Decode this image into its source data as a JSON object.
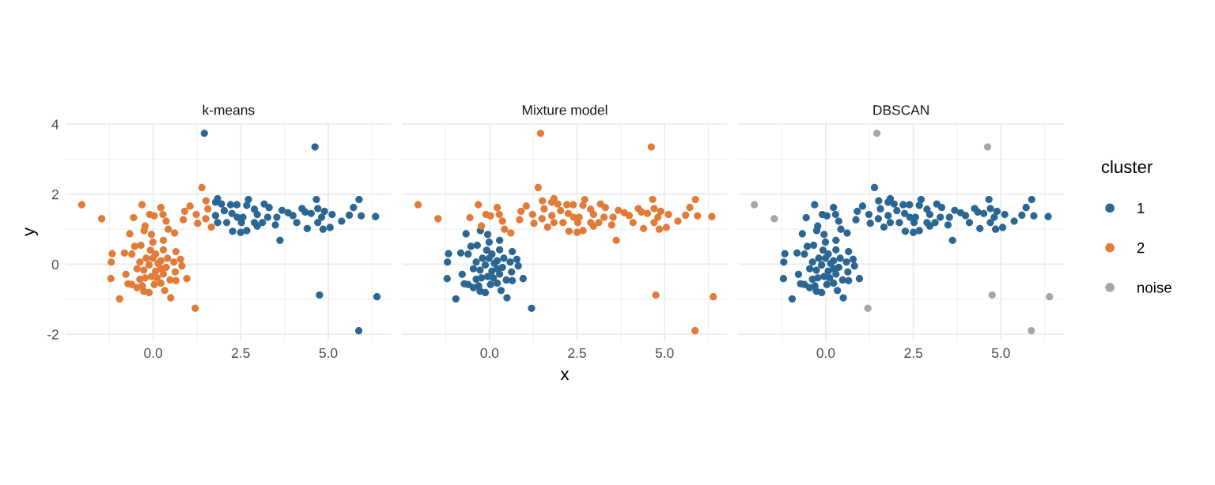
{
  "chart_data": [
    {
      "type": "scatter",
      "title": "k-means",
      "ylabel": "y",
      "marker": "circle",
      "grid": true,
      "legend": "right",
      "xlim": [
        -2.5,
        6.8
      ],
      "ylim": [
        -2.2,
        4.05
      ],
      "xticks": [
        {
          "value": -1.25,
          "label": null
        },
        {
          "value": 0,
          "label": "0.0"
        },
        {
          "value": 1.25,
          "label": null
        },
        {
          "value": 2.5,
          "label": "2.5"
        },
        {
          "value": 3.75,
          "label": null
        },
        {
          "value": 5,
          "label": "5.0"
        },
        {
          "value": 6.25,
          "label": null
        }
      ],
      "yticks": [
        -2,
        {
          "value": -1,
          "label": null
        },
        0,
        {
          "value": 1,
          "label": null
        },
        2,
        {
          "value": 3,
          "label": null
        },
        4
      ],
      "series": [
        {
          "name": "1",
          "color": "#2c6693",
          "x": [
            1.46,
            4.62,
            4.75,
            6.39,
            5.87,
            3.62,
            1.84,
            1.78,
            1.95,
            1.78,
            1.84,
            2.03,
            2.21,
            2.39,
            2.25,
            2.1,
            2.27,
            2.5,
            2.67,
            2.52,
            2.56,
            2.4,
            2.72,
            2.67,
            2.89,
            2.97,
            2.89,
            2.97,
            3.17,
            3.31,
            3.12,
            3.27,
            3.49,
            3.53,
            3.68,
            3.85,
            3.99,
            4.1,
            4.25,
            4.34,
            4.51,
            4.4,
            4.66,
            4.7,
            4.89,
            4.81,
            4.7,
            4.85,
            5.05,
            5.11,
            5.38,
            5.6,
            5.72,
            5.88,
            5.94,
            6.35
          ],
          "values": [
            3.74,
            3.35,
            -0.88,
            -0.93,
            -1.9,
            0.68,
            1.87,
            1.77,
            1.72,
            1.39,
            1.19,
            1.53,
            1.7,
            1.7,
            1.45,
            1.19,
            0.94,
            0.91,
            0.96,
            1.19,
            1.34,
            1.34,
            1.85,
            1.68,
            1.57,
            1.42,
            1.19,
            1.09,
            1.72,
            1.62,
            1.19,
            1.34,
            1.12,
            1.34,
            1.54,
            1.47,
            1.39,
            1.19,
            1.59,
            1.49,
            1.45,
            1.02,
            1.85,
            1.59,
            1.51,
            1.34,
            1.19,
            1.0,
            1.05,
            1.42,
            1.23,
            1.4,
            1.62,
            1.85,
            1.38,
            1.36
          ]
        },
        {
          "name": "2",
          "color": "#e07b39",
          "x": [
            -2.04,
            -1.47,
            -0.32,
            -0.56,
            -0.1,
            0.03,
            0.22,
            0.28,
            0.37,
            0.43,
            0.61,
            -0.23,
            -0.26,
            -0.67,
            -0.05,
            0.29,
            -0.01,
            -0.53,
            -0.35,
            -1.17,
            -0.82,
            -0.61,
            -1.2,
            0.65,
            0.29,
            -1.21,
            -0.78,
            -0.72,
            -0.61,
            -0.46,
            -0.27,
            -0.12,
            0.03,
            0.22,
            0.33,
            0.5,
            -0.96,
            0.48,
            0.65,
            0.96,
            0.63,
            0.82,
            0.78,
            0.59,
            0.41,
            0.22,
            0.07,
            -0.08,
            -0.2,
            -0.38,
            -0.46,
            -0.27,
            -0.12,
            0.07,
            0.22,
            0.37,
            -0.05,
            -0.23,
            -0.38,
            0.11,
            0.29,
            -0.31,
            -0.01,
            0.14,
            1.39,
            1.51,
            1.56,
            1.05,
            0.9,
            0.86,
            1.23,
            1.27,
            1.5,
            1.66,
            1.2
          ],
          "values": [
            1.7,
            1.3,
            1.7,
            1.33,
            1.42,
            1.38,
            1.62,
            1.42,
            1.23,
            1.0,
            0.89,
            1.09,
            0.96,
            0.87,
            0.85,
            0.68,
            0.63,
            0.51,
            0.54,
            0.3,
            0.32,
            0.29,
            0.06,
            0.36,
            0.41,
            -0.41,
            -0.29,
            -0.56,
            -0.58,
            -0.67,
            -0.77,
            -0.81,
            -0.58,
            -0.54,
            -0.75,
            -0.96,
            -0.99,
            -0.45,
            -0.47,
            -0.41,
            -0.22,
            -0.05,
            0.14,
            0.06,
            0.17,
            0.1,
            0.29,
            0.4,
            0.17,
            0.06,
            -0.13,
            -0.17,
            -0.02,
            -0.2,
            -0.13,
            -0.09,
            -0.35,
            -0.39,
            -0.43,
            -0.39,
            -0.28,
            -0.62,
            0.17,
            0.02,
            2.19,
            1.81,
            1.58,
            1.66,
            1.51,
            1.27,
            1.42,
            1.17,
            1.3,
            1.06,
            -1.26
          ]
        }
      ]
    },
    {
      "type": "scatter",
      "title": "Mixture model",
      "xlabel": "x",
      "marker": "circle",
      "grid": true,
      "legend": "right",
      "tick_labels": "x",
      "xlim": [
        -2.5,
        6.8
      ],
      "ylim": [
        -2.2,
        4.05
      ],
      "xticks": [
        {
          "value": -1.25,
          "label": null
        },
        {
          "value": 0,
          "label": "0.0"
        },
        {
          "value": 1.25,
          "label": null
        },
        {
          "value": 2.5,
          "label": "2.5"
        },
        {
          "value": 3.75,
          "label": null
        },
        {
          "value": 5,
          "label": "5.0"
        },
        {
          "value": 6.25,
          "label": null
        }
      ],
      "yticks": [
        -2,
        {
          "value": -1,
          "label": null
        },
        0,
        {
          "value": 1,
          "label": null
        },
        2,
        {
          "value": 3,
          "label": null
        },
        4
      ],
      "series": [
        {
          "name": "1",
          "color": "#2c6693",
          "x": [
            -0.26,
            -0.67,
            -0.05,
            0.29,
            -0.01,
            -0.53,
            -0.35,
            -1.17,
            -0.82,
            -0.61,
            -1.2,
            0.65,
            0.29,
            -1.21,
            -0.78,
            -0.72,
            -0.61,
            -0.46,
            -0.27,
            -0.12,
            0.03,
            0.22,
            0.33,
            0.5,
            -0.96,
            0.48,
            0.65,
            0.96,
            0.63,
            0.82,
            0.78,
            0.59,
            0.41,
            0.22,
            0.07,
            -0.08,
            -0.2,
            -0.38,
            -0.46,
            -0.27,
            -0.12,
            0.07,
            0.22,
            0.37,
            -0.05,
            -0.23,
            -0.38,
            0.11,
            0.29,
            -0.31,
            -0.01,
            0.14,
            1.2
          ],
          "values": [
            0.96,
            0.87,
            0.85,
            0.68,
            0.63,
            0.51,
            0.54,
            0.3,
            0.32,
            0.29,
            0.06,
            0.36,
            0.41,
            -0.41,
            -0.29,
            -0.56,
            -0.58,
            -0.67,
            -0.77,
            -0.81,
            -0.58,
            -0.54,
            -0.75,
            -0.96,
            -0.99,
            -0.45,
            -0.47,
            -0.41,
            -0.22,
            -0.05,
            0.14,
            0.06,
            0.17,
            0.1,
            0.29,
            0.4,
            0.17,
            0.06,
            -0.13,
            -0.17,
            -0.02,
            -0.2,
            -0.13,
            -0.09,
            -0.35,
            -0.39,
            -0.43,
            -0.39,
            -0.28,
            -0.62,
            0.17,
            0.02,
            -1.26
          ]
        },
        {
          "name": "2",
          "color": "#e07b39",
          "x": [
            -2.04,
            -1.47,
            -0.32,
            -0.56,
            -0.1,
            0.03,
            0.22,
            0.28,
            0.37,
            0.43,
            0.61,
            -0.23,
            1.39,
            1.51,
            1.56,
            1.05,
            0.9,
            0.86,
            1.23,
            1.27,
            1.5,
            1.66,
            1.46,
            4.62,
            4.75,
            6.39,
            5.87,
            3.62,
            1.84,
            1.78,
            1.95,
            1.78,
            1.84,
            2.03,
            2.21,
            2.39,
            2.25,
            2.1,
            2.27,
            2.5,
            2.67,
            2.52,
            2.56,
            2.4,
            2.72,
            2.67,
            2.89,
            2.97,
            2.89,
            2.97,
            3.17,
            3.31,
            3.12,
            3.27,
            3.49,
            3.53,
            3.68,
            3.85,
            3.99,
            4.1,
            4.25,
            4.34,
            4.51,
            4.4,
            4.66,
            4.7,
            4.89,
            4.81,
            4.7,
            4.85,
            5.05,
            5.11,
            5.38,
            5.6,
            5.72,
            5.88,
            5.94,
            6.35
          ],
          "values": [
            1.7,
            1.3,
            1.7,
            1.33,
            1.42,
            1.38,
            1.62,
            1.42,
            1.23,
            1.0,
            0.89,
            1.09,
            2.19,
            1.81,
            1.58,
            1.66,
            1.51,
            1.27,
            1.42,
            1.17,
            1.3,
            1.06,
            3.74,
            3.35,
            -0.88,
            -0.93,
            -1.9,
            0.68,
            1.87,
            1.77,
            1.72,
            1.39,
            1.19,
            1.53,
            1.7,
            1.7,
            1.45,
            1.19,
            0.94,
            0.91,
            0.96,
            1.19,
            1.34,
            1.34,
            1.85,
            1.68,
            1.57,
            1.42,
            1.19,
            1.09,
            1.72,
            1.62,
            1.19,
            1.34,
            1.12,
            1.34,
            1.54,
            1.47,
            1.39,
            1.19,
            1.59,
            1.49,
            1.45,
            1.02,
            1.85,
            1.59,
            1.51,
            1.34,
            1.19,
            1.0,
            1.05,
            1.42,
            1.23,
            1.4,
            1.62,
            1.85,
            1.38,
            1.36
          ]
        }
      ]
    },
    {
      "type": "scatter",
      "title": "DBSCAN",
      "marker": "circle",
      "grid": true,
      "legend": "right",
      "legend_title": "cluster",
      "tick_labels": "x",
      "xlim": [
        -2.5,
        6.8
      ],
      "ylim": [
        -2.2,
        4.05
      ],
      "xticks": [
        {
          "value": -1.25,
          "label": null
        },
        {
          "value": 0,
          "label": "0.0"
        },
        {
          "value": 1.25,
          "label": null
        },
        {
          "value": 2.5,
          "label": "2.5"
        },
        {
          "value": 3.75,
          "label": null
        },
        {
          "value": 5,
          "label": "5.0"
        },
        {
          "value": 6.25,
          "label": null
        }
      ],
      "yticks": [
        -2,
        {
          "value": -1,
          "label": null
        },
        0,
        {
          "value": 1,
          "label": null
        },
        2,
        {
          "value": 3,
          "label": null
        },
        4
      ],
      "series": [
        {
          "name": "1",
          "color": "#2c6693",
          "x": [
            -0.32,
            -0.56,
            -0.1,
            0.03,
            0.22,
            0.28,
            0.37,
            0.43,
            0.61,
            -0.23,
            -0.26,
            -0.67,
            -0.05,
            0.29,
            -0.01,
            -0.53,
            -0.35,
            -1.17,
            -0.82,
            -0.61,
            -1.2,
            0.65,
            0.29,
            -1.21,
            -0.78,
            -0.72,
            -0.61,
            -0.46,
            -0.27,
            -0.12,
            0.03,
            0.22,
            0.33,
            0.5,
            -0.96,
            0.48,
            0.65,
            0.96,
            0.63,
            0.82,
            0.78,
            0.59,
            0.41,
            0.22,
            0.07,
            -0.08,
            -0.2,
            -0.38,
            -0.46,
            -0.27,
            -0.12,
            0.07,
            0.22,
            0.37,
            -0.05,
            -0.23,
            -0.38,
            0.11,
            0.29,
            -0.31,
            -0.01,
            0.14,
            1.39,
            1.51,
            1.56,
            1.05,
            0.9,
            0.86,
            1.23,
            1.27,
            1.5,
            1.66,
            3.62,
            1.84,
            1.78,
            1.95,
            1.78,
            1.84,
            2.03,
            2.21,
            2.39,
            2.25,
            2.1,
            2.27,
            2.5,
            2.67,
            2.52,
            2.56,
            2.4,
            2.72,
            2.67,
            2.89,
            2.97,
            2.89,
            2.97,
            3.17,
            3.31,
            3.12,
            3.27,
            3.49,
            3.53,
            3.68,
            3.85,
            3.99,
            4.1,
            4.25,
            4.34,
            4.51,
            4.4,
            4.66,
            4.7,
            4.89,
            4.81,
            4.7,
            4.85,
            5.05,
            5.11,
            5.38,
            5.6,
            5.72,
            5.88,
            5.94,
            6.35
          ],
          "values": [
            1.7,
            1.33,
            1.42,
            1.38,
            1.62,
            1.42,
            1.23,
            1.0,
            0.89,
            1.09,
            0.96,
            0.87,
            0.85,
            0.68,
            0.63,
            0.51,
            0.54,
            0.3,
            0.32,
            0.29,
            0.06,
            0.36,
            0.41,
            -0.41,
            -0.29,
            -0.56,
            -0.58,
            -0.67,
            -0.77,
            -0.81,
            -0.58,
            -0.54,
            -0.75,
            -0.96,
            -0.99,
            -0.45,
            -0.47,
            -0.41,
            -0.22,
            -0.05,
            0.14,
            0.06,
            0.17,
            0.1,
            0.29,
            0.4,
            0.17,
            0.06,
            -0.13,
            -0.17,
            -0.02,
            -0.2,
            -0.13,
            -0.09,
            -0.35,
            -0.39,
            -0.43,
            -0.39,
            -0.28,
            -0.62,
            0.17,
            0.02,
            2.19,
            1.81,
            1.58,
            1.66,
            1.51,
            1.27,
            1.42,
            1.17,
            1.3,
            1.06,
            0.68,
            1.87,
            1.77,
            1.72,
            1.39,
            1.19,
            1.53,
            1.7,
            1.7,
            1.45,
            1.19,
            0.94,
            0.91,
            0.96,
            1.19,
            1.34,
            1.34,
            1.85,
            1.68,
            1.57,
            1.42,
            1.19,
            1.09,
            1.72,
            1.62,
            1.19,
            1.34,
            1.12,
            1.34,
            1.54,
            1.47,
            1.39,
            1.19,
            1.59,
            1.49,
            1.45,
            1.02,
            1.85,
            1.59,
            1.51,
            1.34,
            1.19,
            1.0,
            1.05,
            1.42,
            1.23,
            1.4,
            1.62,
            1.85,
            1.38,
            1.36
          ]
        },
        {
          "name": "noise",
          "color": "#a6a6a6",
          "x": [
            -2.04,
            -1.47,
            1.2,
            1.46,
            4.62,
            4.75,
            6.39,
            5.87
          ],
          "values": [
            1.7,
            1.3,
            -1.26,
            3.74,
            3.35,
            -0.88,
            -0.93,
            -1.9
          ]
        }
      ]
    }
  ]
}
